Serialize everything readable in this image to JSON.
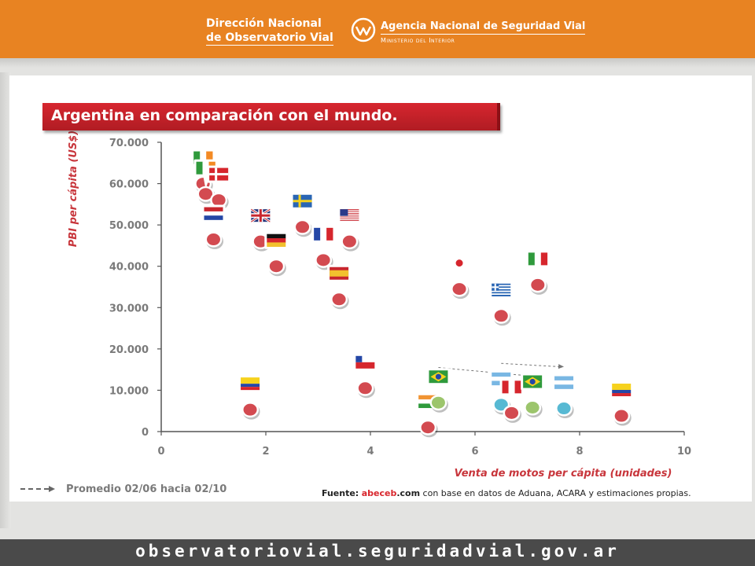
{
  "header": {
    "brand_line1": "Dirección Nacional",
    "brand_line2": "de Observatorio Vial",
    "agency": "Agencia Nacional de Seguridad Vial",
    "ministry": "Ministerio del Interior"
  },
  "colors": {
    "header_orange": "#e88322",
    "title_red": "#c82129",
    "marker_red": "#d34a50",
    "marker_blue": "#57b9d3",
    "marker_green": "#9cc56c",
    "axis_label_red": "#c8363c",
    "footer_gray": "#4a4a4a"
  },
  "chart_data": {
    "type": "scatter",
    "title": "Argentina en comparación con el mundo.",
    "xlabel": "Venta de motos per cápita (unidades)",
    "ylabel": "PBI per cápita (US$)",
    "xlim": [
      0,
      10
    ],
    "ylim": [
      0,
      70000
    ],
    "x_ticks": [
      "0",
      "2",
      "4",
      "6",
      "8",
      "10"
    ],
    "y_ticks": [
      "0",
      "10.000",
      "20.000",
      "30.000",
      "40.000",
      "50.000",
      "60.000",
      "70.000"
    ],
    "grid": false,
    "points": [
      {
        "flag": "ireland",
        "x": 0.8,
        "y": 60000,
        "color": "red"
      },
      {
        "flag": "ireland",
        "x": 0.85,
        "y": 57500,
        "color": "red"
      },
      {
        "flag": "denmark",
        "x": 1.1,
        "y": 56000,
        "color": "red"
      },
      {
        "flag": "netherlands",
        "x": 1.0,
        "y": 46500,
        "color": "red"
      },
      {
        "flag": "uk",
        "x": 1.9,
        "y": 46000,
        "color": "red"
      },
      {
        "flag": "germany",
        "x": 2.2,
        "y": 40000,
        "color": "red"
      },
      {
        "flag": "sweden",
        "x": 2.7,
        "y": 49500,
        "color": "red"
      },
      {
        "flag": "france",
        "x": 3.1,
        "y": 41500,
        "color": "red"
      },
      {
        "flag": "usa",
        "x": 3.6,
        "y": 46000,
        "color": "red"
      },
      {
        "flag": "spain",
        "x": 3.4,
        "y": 32000,
        "color": "red"
      },
      {
        "flag": "japan",
        "x": 5.7,
        "y": 34500,
        "color": "red"
      },
      {
        "flag": "italy",
        "x": 7.2,
        "y": 35500,
        "color": "red"
      },
      {
        "flag": "greece",
        "x": 6.5,
        "y": 28000,
        "color": "red"
      },
      {
        "flag": "chile",
        "x": 3.9,
        "y": 10500,
        "color": "red"
      },
      {
        "flag": "colombia",
        "x": 1.7,
        "y": 5300,
        "color": "red"
      },
      {
        "flag": "india",
        "x": 5.1,
        "y": 1000,
        "color": "red"
      },
      {
        "flag": "brazil",
        "x": 5.3,
        "y": 7000,
        "color": "green"
      },
      {
        "flag": "argentina",
        "x": 6.5,
        "y": 6500,
        "color": "blue"
      },
      {
        "flag": "peru",
        "x": 6.7,
        "y": 4500,
        "color": "red"
      },
      {
        "flag": "brazil",
        "x": 7.1,
        "y": 5800,
        "color": "green"
      },
      {
        "flag": "argentina",
        "x": 7.7,
        "y": 5600,
        "color": "blue"
      },
      {
        "flag": "ecuador",
        "x": 8.8,
        "y": 3800,
        "color": "red"
      }
    ],
    "trend_arrows": [
      {
        "from": [
          5.3,
          15500
        ],
        "to": [
          7.1,
          13500
        ]
      },
      {
        "from": [
          6.5,
          16500
        ],
        "to": [
          7.7,
          15700
        ]
      }
    ],
    "legend": {
      "label": "Promedio 02/06 hacia 02/10",
      "style": "dashed-arrow",
      "placement": "bottom-left"
    }
  },
  "source": {
    "prefix": "Fuente:",
    "domain": "abeceb",
    "domain_suffix": ".com",
    "rest": " con base en datos de Aduana, ACARA y estimaciones propias."
  },
  "footer": {
    "url": "observatoriovial.seguridadvial.gov.ar"
  }
}
